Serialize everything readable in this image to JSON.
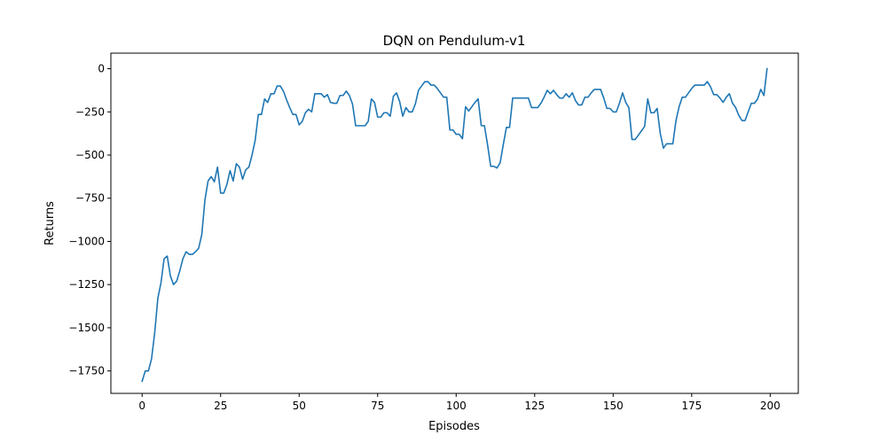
{
  "chart_data": {
    "type": "line",
    "title": "DQN on Pendulum-v1",
    "xlabel": "Episodes",
    "ylabel": "Returns",
    "xlim": [
      -9.95,
      208.95
    ],
    "ylim": [
      -1880,
      90
    ],
    "x_ticks": [
      0,
      25,
      50,
      75,
      100,
      125,
      150,
      175,
      200
    ],
    "y_ticks": [
      0,
      -250,
      -500,
      -750,
      -1000,
      -1250,
      -1500,
      -1750
    ],
    "x_tick_labels": [
      "0",
      "25",
      "50",
      "75",
      "100",
      "125",
      "150",
      "175",
      "200"
    ],
    "y_tick_labels": [
      "0",
      "−250",
      "−500",
      "−750",
      "−1000",
      "−1250",
      "−1500",
      "−1750"
    ],
    "grid": false,
    "series": [
      {
        "color": "#1f77b4",
        "x": [
          0,
          1,
          2,
          3,
          4,
          5,
          6,
          7,
          8,
          9,
          10,
          11,
          12,
          13,
          14,
          15,
          16,
          17,
          18,
          19,
          20,
          21,
          22,
          23,
          24,
          25,
          26,
          27,
          28,
          29,
          30,
          31,
          32,
          33,
          34,
          35,
          36,
          37,
          38,
          39,
          40,
          41,
          42,
          43,
          44,
          45,
          46,
          47,
          48,
          49,
          50,
          51,
          52,
          53,
          54,
          55,
          56,
          57,
          58,
          59,
          60,
          61,
          62,
          63,
          64,
          65,
          66,
          67,
          68,
          69,
          70,
          71,
          72,
          73,
          74,
          75,
          76,
          77,
          78,
          79,
          80,
          81,
          82,
          83,
          84,
          85,
          86,
          87,
          88,
          89,
          90,
          91,
          92,
          93,
          94,
          95,
          96,
          97,
          98,
          99,
          100,
          101,
          102,
          103,
          104,
          105,
          106,
          107,
          108,
          109,
          110,
          111,
          112,
          113,
          114,
          115,
          116,
          117,
          118,
          119,
          120,
          121,
          122,
          123,
          124,
          125,
          126,
          127,
          128,
          129,
          130,
          131,
          132,
          133,
          134,
          135,
          136,
          137,
          138,
          139,
          140,
          141,
          142,
          143,
          144,
          145,
          146,
          147,
          148,
          149,
          150,
          151,
          152,
          153,
          154,
          155,
          156,
          157,
          158,
          159,
          160,
          161,
          162,
          163,
          164,
          165,
          166,
          167,
          168,
          169,
          170,
          171,
          172,
          173,
          174,
          175,
          176,
          177,
          178,
          179,
          180,
          181,
          182,
          183,
          184,
          185,
          186,
          187,
          188,
          189,
          190,
          191,
          192,
          193,
          194,
          195,
          196,
          197,
          198,
          199
        ],
        "y": [
          -1810,
          -1750,
          -1750,
          -1680,
          -1530,
          -1330,
          -1240,
          -1100,
          -1085,
          -1200,
          -1250,
          -1230,
          -1170,
          -1100,
          -1060,
          -1075,
          -1075,
          -1060,
          -1040,
          -960,
          -760,
          -650,
          -625,
          -655,
          -570,
          -720,
          -720,
          -670,
          -590,
          -650,
          -550,
          -570,
          -640,
          -585,
          -570,
          -500,
          -415,
          -265,
          -265,
          -175,
          -195,
          -145,
          -145,
          -100,
          -100,
          -130,
          -180,
          -225,
          -265,
          -265,
          -325,
          -305,
          -255,
          -235,
          -250,
          -145,
          -145,
          -145,
          -165,
          -150,
          -195,
          -200,
          -200,
          -155,
          -155,
          -130,
          -155,
          -205,
          -330,
          -330,
          -330,
          -330,
          -305,
          -175,
          -195,
          -280,
          -280,
          -255,
          -255,
          -275,
          -160,
          -140,
          -190,
          -275,
          -225,
          -250,
          -250,
          -205,
          -125,
          -100,
          -75,
          -75,
          -95,
          -95,
          -115,
          -140,
          -165,
          -165,
          -355,
          -355,
          -380,
          -380,
          -405,
          -220,
          -245,
          -220,
          -195,
          -175,
          -330,
          -330,
          -440,
          -565,
          -565,
          -575,
          -545,
          -440,
          -340,
          -340,
          -170,
          -170,
          -170,
          -170,
          -170,
          -170,
          -225,
          -225,
          -225,
          -200,
          -165,
          -125,
          -145,
          -125,
          -150,
          -170,
          -170,
          -145,
          -165,
          -140,
          -185,
          -210,
          -210,
          -165,
          -165,
          -140,
          -120,
          -120,
          -120,
          -170,
          -230,
          -230,
          -250,
          -250,
          -200,
          -140,
          -195,
          -225,
          -410,
          -410,
          -385,
          -360,
          -335,
          -175,
          -255,
          -255,
          -230,
          -375,
          -460,
          -435,
          -435,
          -435,
          -300,
          -220,
          -165,
          -165,
          -140,
          -115,
          -95,
          -95,
          -95,
          -95,
          -75,
          -105,
          -150,
          -150,
          -170,
          -195,
          -165,
          -145,
          -200,
          -225,
          -270,
          -300,
          -300,
          -250,
          -200,
          -200,
          -175,
          -120,
          -155,
          0
        ]
      }
    ]
  }
}
